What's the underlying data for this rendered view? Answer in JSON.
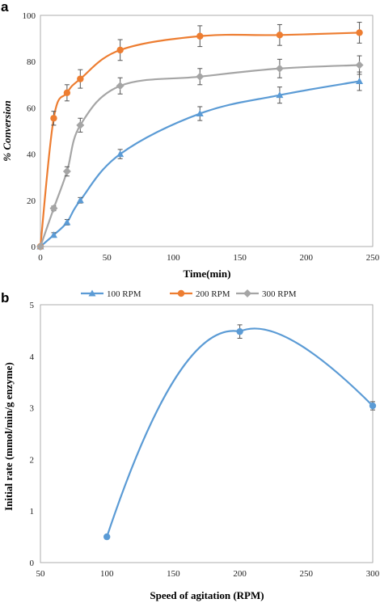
{
  "chart_data": [
    {
      "panel": "a",
      "type": "line",
      "xlabel": "Time(min)",
      "ylabel": "% Conversion",
      "xlim": [
        0,
        250
      ],
      "ylim": [
        0,
        100
      ],
      "xticks": [
        0,
        50,
        100,
        150,
        200,
        250
      ],
      "yticks": [
        0,
        20,
        40,
        60,
        80,
        100
      ],
      "grid": false,
      "legend_position": "bottom",
      "x": [
        0,
        10,
        20,
        30,
        60,
        120,
        180,
        240
      ],
      "series": [
        {
          "name": "100 RPM",
          "color": "#5b9bd5",
          "marker": "triangle",
          "values": [
            0,
            5,
            10.5,
            20,
            40,
            57.5,
            65.5,
            71.5
          ],
          "errors": [
            0,
            1,
            1.2,
            1.2,
            2,
            3,
            3.5,
            4
          ]
        },
        {
          "name": "200 RPM",
          "color": "#ed7d31",
          "marker": "circle",
          "values": [
            0,
            55.5,
            66.5,
            72.5,
            85,
            91,
            91.5,
            92.5
          ],
          "errors": [
            0,
            3,
            3.5,
            4,
            4.5,
            4.5,
            4.5,
            4.5
          ]
        },
        {
          "name": "300 RPM",
          "color": "#a5a5a5",
          "marker": "diamond",
          "values": [
            0,
            16.5,
            32.5,
            52.5,
            69.5,
            73.5,
            77,
            78.5
          ],
          "errors": [
            0,
            1,
            2,
            3,
            3.5,
            3.5,
            4,
            4
          ]
        }
      ]
    },
    {
      "panel": "b",
      "type": "line",
      "xlabel": "Speed of agitation (RPM)",
      "ylabel": "Initial rate (mmol/min/g enzyme)",
      "xlim": [
        50,
        300
      ],
      "ylim": [
        0,
        5
      ],
      "xticks": [
        50,
        100,
        150,
        200,
        250,
        300
      ],
      "yticks": [
        0,
        1,
        2,
        3,
        4,
        5
      ],
      "grid": false,
      "series": [
        {
          "color": "#5b9bd5",
          "marker": "circle",
          "x": [
            100,
            200,
            300
          ],
          "values": [
            0.5,
            4.48,
            3.04
          ],
          "errors": [
            0,
            0.13,
            0.08
          ]
        }
      ]
    }
  ]
}
